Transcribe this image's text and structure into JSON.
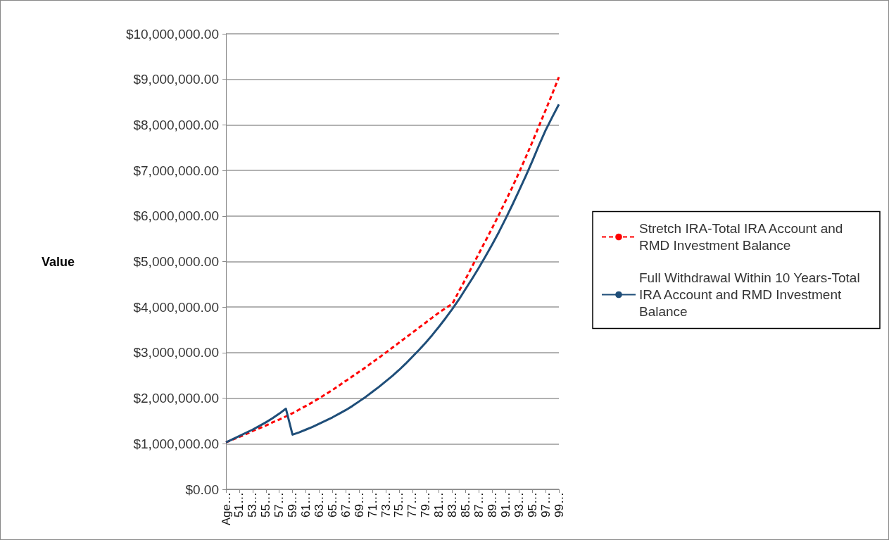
{
  "chart_data": {
    "type": "line",
    "ylabel": "Value",
    "categories": [
      "Age…",
      null,
      "51…",
      null,
      "53…",
      null,
      "55…",
      null,
      "57…",
      null,
      "59…",
      null,
      "61…",
      null,
      "63…",
      null,
      "65…",
      null,
      "67…",
      null,
      "69…",
      null,
      "71…",
      null,
      "73…",
      null,
      "75…",
      null,
      "77…",
      null,
      "79…",
      null,
      "81…",
      null,
      "83…",
      null,
      "85…",
      null,
      "87…",
      null,
      "89…",
      null,
      "91…",
      null,
      "93…",
      null,
      "95…",
      null,
      "97…",
      null,
      "99…"
    ],
    "series": [
      {
        "name": "Stretch IRA-Total IRA Account and RMD Investment Balance",
        "color": "#ff0000",
        "line_style": "dashed",
        "values": [
          1030000,
          1090000,
          1150000,
          1210000,
          1280000,
          1340000,
          1400000,
          1470000,
          1530000,
          1600000,
          1670000,
          1750000,
          1830000,
          1910000,
          2000000,
          2090000,
          2180000,
          2280000,
          2380000,
          2480000,
          2580000,
          2680000,
          2790000,
          2890000,
          3000000,
          3110000,
          3220000,
          3330000,
          3440000,
          3550000,
          3660000,
          3770000,
          3880000,
          3980000,
          4070000,
          4350000,
          4620000,
          4900000,
          5180000,
          5460000,
          5740000,
          6030000,
          6330000,
          6630000,
          6950000,
          7280000,
          7620000,
          7970000,
          8320000,
          8680000,
          9050000
        ]
      },
      {
        "name": "Full Withdrawal Within 10 Years-Total IRA Account and RMD Investment Balance",
        "color": "#1f4e79",
        "line_style": "solid",
        "values": [
          1030000,
          1100000,
          1170000,
          1240000,
          1310000,
          1390000,
          1470000,
          1560000,
          1660000,
          1770000,
          1200000,
          1250000,
          1310000,
          1370000,
          1440000,
          1510000,
          1580000,
          1660000,
          1740000,
          1830000,
          1930000,
          2030000,
          2140000,
          2250000,
          2370000,
          2490000,
          2620000,
          2760000,
          2910000,
          3060000,
          3220000,
          3390000,
          3570000,
          3760000,
          3960000,
          4170000,
          4400000,
          4630000,
          4870000,
          5120000,
          5380000,
          5650000,
          5940000,
          6240000,
          6550000,
          6870000,
          7200000,
          7550000,
          7880000,
          8170000,
          8450000
        ]
      }
    ],
    "ylim": [
      0,
      10000000
    ],
    "yticks": [
      {
        "value": 0,
        "label": "$0.00"
      },
      {
        "value": 1000000,
        "label": "$1,000,000.00"
      },
      {
        "value": 2000000,
        "label": "$2,000,000.00"
      },
      {
        "value": 3000000,
        "label": "$3,000,000.00"
      },
      {
        "value": 4000000,
        "label": "$4,000,000.00"
      },
      {
        "value": 5000000,
        "label": "$5,000,000.00"
      },
      {
        "value": 6000000,
        "label": "$6,000,000.00"
      },
      {
        "value": 7000000,
        "label": "$7,000,000.00"
      },
      {
        "value": 8000000,
        "label": "$8,000,000.00"
      },
      {
        "value": 9000000,
        "label": "$9,000,000.00"
      },
      {
        "value": 10000000,
        "label": "$10,000,000.00"
      }
    ],
    "grid": "y",
    "legend": "right",
    "marker": "none"
  }
}
